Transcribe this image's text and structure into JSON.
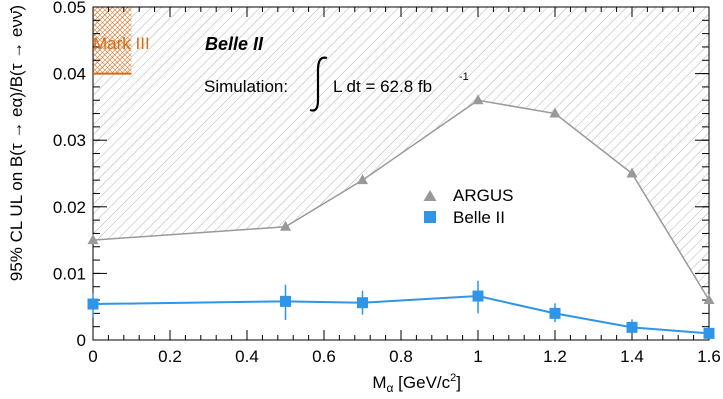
{
  "chart_data": {
    "type": "line",
    "xlabel": "M",
    "xlabel_sub": "α",
    "xlabel_unit": " [GeV/c",
    "xlabel_sup": "2",
    "xlabel_end": "]",
    "ylabel": "95% CL UL on B(τ → eα)/B(τ → eνν̄)",
    "xlim": [
      0,
      1.6
    ],
    "ylim": [
      0,
      0.05
    ],
    "x_ticks": [
      0,
      0.2,
      0.4,
      0.6,
      0.8,
      1,
      1.2,
      1.4,
      1.6
    ],
    "x_tick_labels": [
      "0",
      "0.2",
      "0.4",
      "0.6",
      "0.8",
      "1",
      "1.2",
      "1.4",
      "1.6"
    ],
    "y_ticks": [
      0,
      0.01,
      0.02,
      0.03,
      0.04,
      0.05
    ],
    "y_tick_labels": [
      "0",
      "0.01",
      "0.02",
      "0.03",
      "0.04",
      "0.05"
    ],
    "grid": false,
    "legend_position": "center-right",
    "series": [
      {
        "name": "ARGUS",
        "color": "#999999",
        "marker": "triangle",
        "hatched_excluded_region": true,
        "x": [
          0,
          0.5,
          0.7,
          1.0,
          1.2,
          1.4,
          1.6
        ],
        "y": [
          0.015,
          0.017,
          0.024,
          0.036,
          0.034,
          0.025,
          0.006
        ]
      },
      {
        "name": "Belle II",
        "color": "#2f95e8",
        "marker": "square",
        "x": [
          0,
          0.5,
          0.7,
          1.0,
          1.2,
          1.4,
          1.6
        ],
        "y": [
          0.0054,
          0.0058,
          0.0056,
          0.0066,
          0.004,
          0.0019,
          0.001
        ],
        "err_up": [
          0.0017,
          0.0025,
          0.0018,
          0.0023,
          0.0015,
          0.0012,
          0.0008
        ],
        "err_down": [
          0.002,
          0.0028,
          0.0018,
          0.0026,
          0.0013,
          0.0008,
          0.0008
        ]
      }
    ],
    "mark3": {
      "label": "Mark III",
      "color": "#d86a14",
      "x": [
        0,
        0.1
      ],
      "y": 0.04
    },
    "annotations": {
      "experiment": "Belle II",
      "simulation_label": "Simulation:",
      "lumi_text": "L dt = 62.8 fb",
      "lumi_exponent": "-1"
    }
  }
}
